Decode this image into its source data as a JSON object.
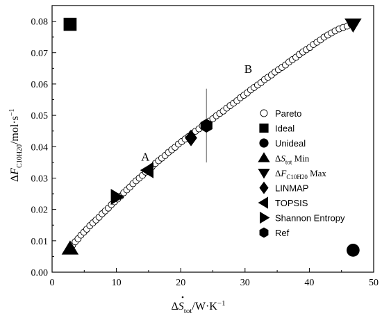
{
  "chart_data": {
    "type": "scatter",
    "x_title": {
      "delta": "ΔS",
      "subscript": "tot",
      "rest": "/W·K",
      "exp": "−1"
    },
    "y_title": {
      "delta": "ΔF",
      "subscript": "C10H20",
      "rest": "/mol·s",
      "exp": "−1"
    },
    "xlim": [
      0,
      50
    ],
    "ylim": [
      0.0,
      0.085
    ],
    "xticks": [
      "0",
      "10",
      "20",
      "30",
      "40",
      "50"
    ],
    "yticks": [
      "0.00",
      "0.01",
      "0.02",
      "0.03",
      "0.04",
      "0.05",
      "0.06",
      "0.07",
      "0.08"
    ],
    "region_labels": [
      {
        "text": "A",
        "x": 14.5,
        "y": 0.0355
      },
      {
        "text": "B",
        "x": 30.5,
        "y": 0.0635
      }
    ],
    "divider": {
      "x": 24.0,
      "y_from": 0.035,
      "y_to": 0.0585
    },
    "pareto_curve": {
      "x": [
        2.8,
        3.5,
        4.5,
        5.5,
        7,
        9,
        11,
        13,
        15,
        17,
        19,
        21,
        23,
        24,
        25,
        27,
        30,
        33,
        36,
        39,
        42,
        44,
        46.5
      ],
      "y": [
        0.0075,
        0.0095,
        0.0118,
        0.014,
        0.017,
        0.021,
        0.025,
        0.029,
        0.0327,
        0.0363,
        0.0397,
        0.043,
        0.046,
        0.0475,
        0.049,
        0.052,
        0.0567,
        0.0613,
        0.0657,
        0.0702,
        0.0745,
        0.077,
        0.079
      ],
      "point_count": 85
    },
    "series": [
      {
        "name": "Pareto",
        "marker": "circle-open"
      },
      {
        "name": "Ideal",
        "marker": "square",
        "x": [
          2.8
        ],
        "y": [
          0.079
        ]
      },
      {
        "name": "Unideal",
        "marker": "circle",
        "x": [
          46.8
        ],
        "y": [
          0.007
        ]
      },
      {
        "name": "ΔS_tot Min",
        "label": {
          "delta": "ΔS",
          "subscript": "tot",
          "rest": " Min"
        },
        "marker": "triangle-up",
        "x": [
          2.8
        ],
        "y": [
          0.0075
        ]
      },
      {
        "name": "ΔF_C10H20 Max",
        "label": {
          "delta": "ΔF",
          "subscript": "C10H20",
          "rest": " Max"
        },
        "marker": "triangle-down",
        "x": [
          46.8
        ],
        "y": [
          0.079
        ]
      },
      {
        "name": "LINMAP",
        "marker": "diamond",
        "x": [
          21.6
        ],
        "y": [
          0.0428
        ]
      },
      {
        "name": "TOPSIS",
        "marker": "triangle-left",
        "x": [
          14.9
        ],
        "y": [
          0.0325
        ]
      },
      {
        "name": "Shannon Entropy",
        "marker": "triangle-right",
        "x": [
          10.0
        ],
        "y": [
          0.024
        ]
      },
      {
        "name": "Ref",
        "marker": "hexagon",
        "x": [
          24.0
        ],
        "y": [
          0.0467
        ]
      }
    ],
    "legend_position": "right"
  }
}
